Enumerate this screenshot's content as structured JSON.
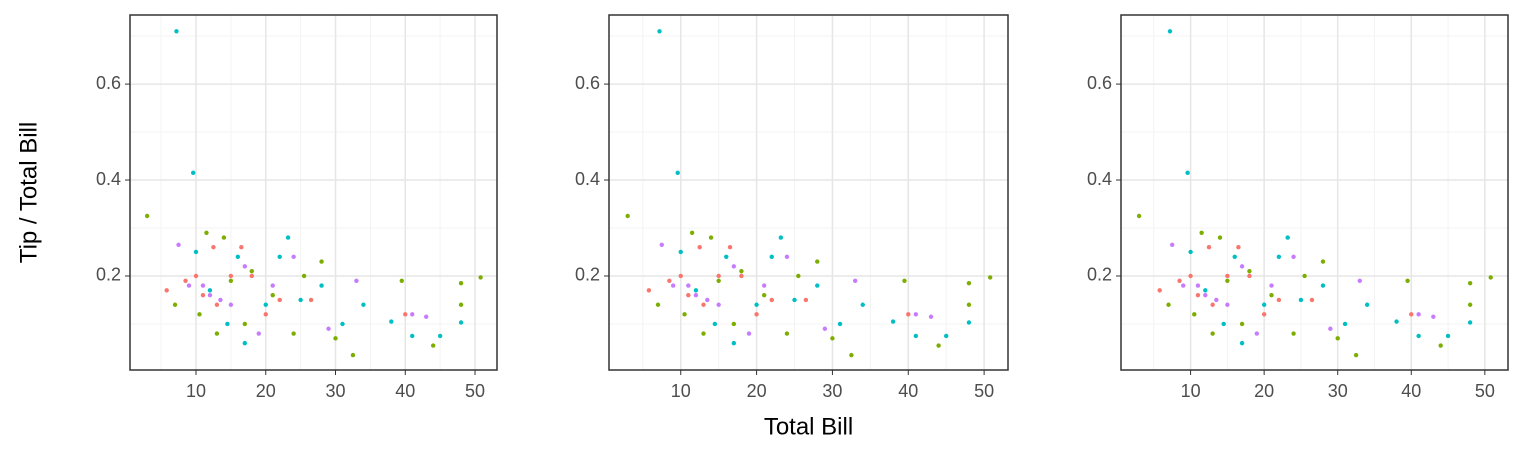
{
  "chart_data": [
    {
      "type": "scatter",
      "y_label": "Tip / Total Bill",
      "xlim": [
        0.54,
        53.15
      ],
      "ylim": [
        0.004,
        0.744
      ],
      "xticks": [
        10,
        20,
        30,
        40,
        50
      ],
      "yticks": [
        0.2,
        0.4,
        0.6
      ],
      "xminor": [
        5,
        15,
        25,
        35,
        45
      ],
      "yminor": [
        0.1,
        0.3,
        0.5,
        0.7
      ],
      "grid": true,
      "series": [
        {
          "color": "#F8766D",
          "x": [
            5.8,
            8.5,
            10,
            11,
            12.5,
            13,
            15,
            16.5,
            18,
            20,
            22,
            26.5,
            40
          ],
          "values": [
            0.17,
            0.19,
            0.2,
            0.16,
            0.26,
            0.14,
            0.2,
            0.26,
            0.2,
            0.12,
            0.15,
            0.15,
            0.12
          ]
        },
        {
          "color": "#7CAE00",
          "x": [
            3,
            7,
            10.5,
            11.5,
            13,
            14,
            15,
            17,
            18,
            21,
            24,
            25.5,
            28,
            30,
            32.5,
            39.5,
            44,
            48,
            48,
            50.8
          ],
          "values": [
            0.325,
            0.14,
            0.12,
            0.29,
            0.08,
            0.28,
            0.19,
            0.1,
            0.21,
            0.16,
            0.08,
            0.2,
            0.23,
            0.07,
            0.035,
            0.19,
            0.055,
            0.185,
            0.14,
            0.197
          ]
        },
        {
          "color": "#00BFC4",
          "x": [
            7.2,
            9.6,
            10,
            12,
            14.5,
            16,
            17,
            20,
            22,
            23.2,
            25,
            28,
            31,
            34,
            38,
            41,
            45,
            48
          ],
          "values": [
            0.71,
            0.415,
            0.25,
            0.17,
            0.1,
            0.24,
            0.06,
            0.14,
            0.24,
            0.28,
            0.15,
            0.18,
            0.1,
            0.14,
            0.105,
            0.075,
            0.075,
            0.103
          ]
        },
        {
          "color": "#C77CFF",
          "x": [
            7.5,
            9,
            11,
            12,
            13.5,
            15,
            17,
            19,
            21,
            24,
            29,
            33,
            41,
            43
          ],
          "values": [
            0.265,
            0.18,
            0.18,
            0.16,
            0.15,
            0.14,
            0.22,
            0.08,
            0.18,
            0.24,
            0.09,
            0.19,
            0.12,
            0.115
          ]
        }
      ]
    },
    {
      "type": "scatter",
      "x_label": "Total Bill",
      "xlim": [
        0.54,
        53.15
      ],
      "ylim": [
        0.004,
        0.744
      ],
      "xticks": [
        10,
        20,
        30,
        40,
        50
      ],
      "yticks": [
        0.2,
        0.4,
        0.6
      ],
      "xminor": [
        5,
        15,
        25,
        35,
        45
      ],
      "yminor": [
        0.1,
        0.3,
        0.5,
        0.7
      ],
      "grid": true,
      "series": [
        {
          "color": "#F8766D",
          "x": [
            5.8,
            8.5,
            10,
            11,
            12.5,
            13,
            15,
            16.5,
            18,
            20,
            22,
            26.5,
            40
          ],
          "values": [
            0.17,
            0.19,
            0.2,
            0.16,
            0.26,
            0.14,
            0.2,
            0.26,
            0.2,
            0.12,
            0.15,
            0.15,
            0.12
          ]
        },
        {
          "color": "#7CAE00",
          "x": [
            3,
            7,
            10.5,
            11.5,
            13,
            14,
            15,
            17,
            18,
            21,
            24,
            25.5,
            28,
            30,
            32.5,
            39.5,
            44,
            48,
            48,
            50.8
          ],
          "values": [
            0.325,
            0.14,
            0.12,
            0.29,
            0.08,
            0.28,
            0.19,
            0.1,
            0.21,
            0.16,
            0.08,
            0.2,
            0.23,
            0.07,
            0.035,
            0.19,
            0.055,
            0.185,
            0.14,
            0.197
          ]
        },
        {
          "color": "#00BFC4",
          "x": [
            7.2,
            9.6,
            10,
            12,
            14.5,
            16,
            17,
            20,
            22,
            23.2,
            25,
            28,
            31,
            34,
            38,
            41,
            45,
            48
          ],
          "values": [
            0.71,
            0.415,
            0.25,
            0.17,
            0.1,
            0.24,
            0.06,
            0.14,
            0.24,
            0.28,
            0.15,
            0.18,
            0.1,
            0.14,
            0.105,
            0.075,
            0.075,
            0.103
          ]
        },
        {
          "color": "#C77CFF",
          "x": [
            7.5,
            9,
            11,
            12,
            13.5,
            15,
            17,
            19,
            21,
            24,
            29,
            33,
            41,
            43
          ],
          "values": [
            0.265,
            0.18,
            0.18,
            0.16,
            0.15,
            0.14,
            0.22,
            0.08,
            0.18,
            0.24,
            0.09,
            0.19,
            0.12,
            0.115
          ]
        }
      ]
    },
    {
      "type": "scatter",
      "xlim": [
        0.54,
        53.15
      ],
      "ylim": [
        0.004,
        0.744
      ],
      "xticks": [
        10,
        20,
        30,
        40,
        50
      ],
      "yticks": [
        0.2,
        0.4,
        0.6
      ],
      "xminor": [
        5,
        15,
        25,
        35,
        45
      ],
      "yminor": [
        0.1,
        0.3,
        0.5,
        0.7
      ],
      "grid": true,
      "series": [
        {
          "color": "#F8766D",
          "x": [
            5.8,
            8.5,
            10,
            11,
            12.5,
            13,
            15,
            16.5,
            18,
            20,
            22,
            26.5,
            40
          ],
          "values": [
            0.17,
            0.19,
            0.2,
            0.16,
            0.26,
            0.14,
            0.2,
            0.26,
            0.2,
            0.12,
            0.15,
            0.15,
            0.12
          ]
        },
        {
          "color": "#7CAE00",
          "x": [
            3,
            7,
            10.5,
            11.5,
            13,
            14,
            15,
            17,
            18,
            21,
            24,
            25.5,
            28,
            30,
            32.5,
            39.5,
            44,
            48,
            48,
            50.8
          ],
          "values": [
            0.325,
            0.14,
            0.12,
            0.29,
            0.08,
            0.28,
            0.19,
            0.1,
            0.21,
            0.16,
            0.08,
            0.2,
            0.23,
            0.07,
            0.035,
            0.19,
            0.055,
            0.185,
            0.14,
            0.197
          ]
        },
        {
          "color": "#00BFC4",
          "x": [
            7.2,
            9.6,
            10,
            12,
            14.5,
            16,
            17,
            20,
            22,
            23.2,
            25,
            28,
            31,
            34,
            38,
            41,
            45,
            48
          ],
          "values": [
            0.71,
            0.415,
            0.25,
            0.17,
            0.1,
            0.24,
            0.06,
            0.14,
            0.24,
            0.28,
            0.15,
            0.18,
            0.1,
            0.14,
            0.105,
            0.075,
            0.075,
            0.103
          ]
        },
        {
          "color": "#C77CFF",
          "x": [
            7.5,
            9,
            11,
            12,
            13.5,
            15,
            17,
            19,
            21,
            24,
            29,
            33,
            41,
            43
          ],
          "values": [
            0.265,
            0.18,
            0.18,
            0.16,
            0.15,
            0.14,
            0.22,
            0.08,
            0.18,
            0.24,
            0.09,
            0.19,
            0.12,
            0.115
          ]
        }
      ]
    }
  ]
}
